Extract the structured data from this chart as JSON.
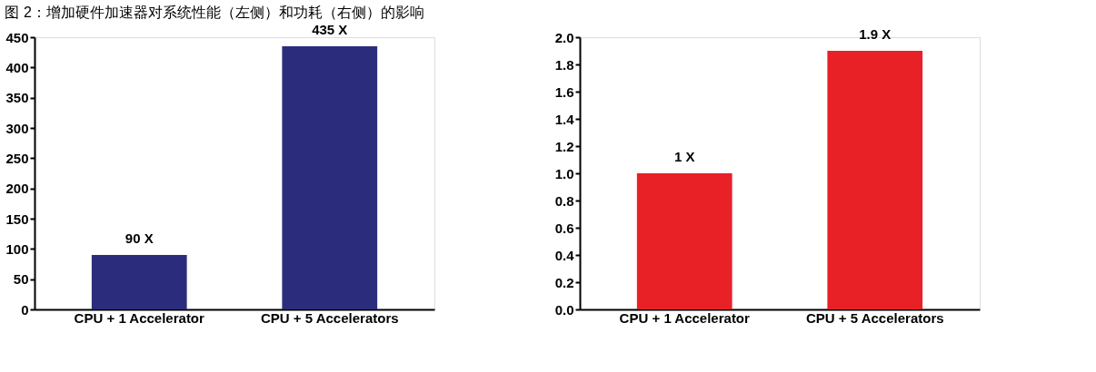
{
  "chart_data": [
    {
      "type": "bar",
      "title": "图 2：增加硬件加速器对系统性能（左侧）和功耗（右侧）的影响",
      "categories": [
        "CPU + 1 Accelerator",
        "CPU + 5 Accelerators"
      ],
      "values": [
        90,
        435
      ],
      "color": "#2b2d7c",
      "value_labels": [
        "90 X",
        "435 X"
      ],
      "ylim": [
        0,
        450
      ],
      "yticks": [
        0,
        50,
        100,
        150,
        200,
        250,
        300,
        350,
        400,
        450
      ],
      "grid": false
    },
    {
      "type": "bar",
      "categories": [
        "CPU + 1 Accelerator",
        "CPU + 5 Accelerators"
      ],
      "values": [
        1,
        1.9
      ],
      "color": "#e82127",
      "value_labels": [
        "1 X",
        "1.9 X"
      ],
      "ylim": [
        0,
        2.0
      ],
      "yticks": [
        {
          "value": 0,
          "label": "0.0"
        },
        0.2,
        0.4,
        0.6,
        0.8,
        {
          "value": 1,
          "label": "1.0"
        },
        1.2,
        1.4,
        1.6,
        1.8,
        {
          "value": 2,
          "label": "2.0"
        }
      ],
      "grid": false
    }
  ]
}
